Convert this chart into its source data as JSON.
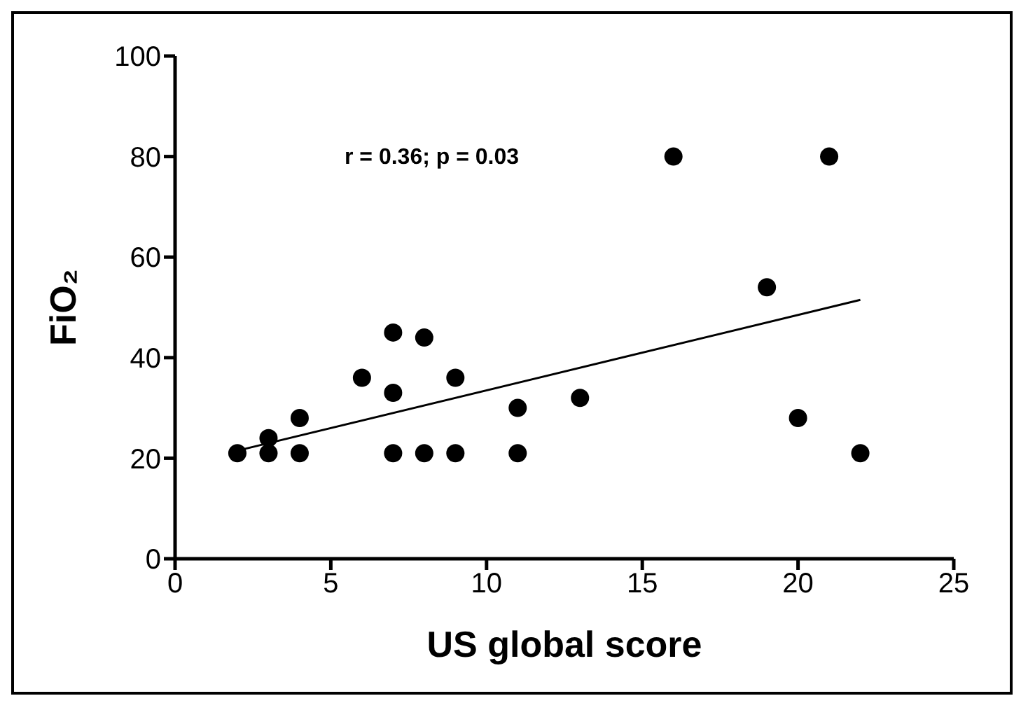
{
  "chart_data": {
    "type": "scatter",
    "xlabel": "US global score",
    "ylabel": "FiO₂",
    "xlim": [
      0,
      25
    ],
    "xticks": [
      0,
      5,
      10,
      15,
      20,
      25
    ],
    "ylim": [
      0,
      100
    ],
    "yticks": [
      0,
      20,
      40,
      60,
      80,
      100
    ],
    "marker": "circle",
    "annotations": [
      "r = 0.36; p = 0.03"
    ],
    "series": [
      {
        "color": "#000000",
        "x": [
          2,
          3,
          3,
          4,
          4,
          6,
          7,
          7,
          7,
          8,
          8,
          9,
          9,
          11,
          11,
          13,
          16,
          19,
          20,
          21,
          22
        ],
        "values": [
          21,
          24,
          21,
          28,
          21,
          36,
          45,
          33,
          21,
          44,
          21,
          36,
          21,
          30,
          21,
          32,
          80,
          54,
          28,
          80,
          21
        ]
      },
      {
        "type": "line",
        "marker": "none",
        "color": "#000000",
        "x": [
          2,
          22
        ],
        "values": [
          21.5,
          51.5
        ]
      }
    ]
  }
}
